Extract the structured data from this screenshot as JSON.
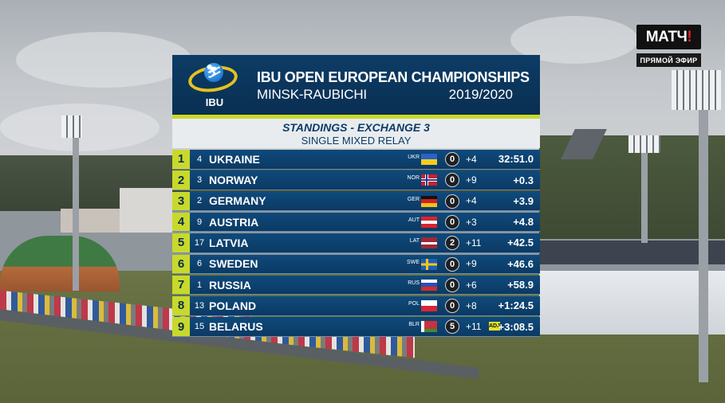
{
  "broadcaster": {
    "logo_main": "МАТЧ",
    "logo_bang": "!",
    "live_label": "ПРЯМОЙ ЭФИР"
  },
  "event": {
    "org_label": "IBU",
    "title": "IBU OPEN EUROPEAN CHAMPIONSHIPS",
    "venue": "MINSK-RAUBICHI",
    "season": "2019/2020",
    "standings_label": "STANDINGS - EXCHANGE 3",
    "race": "SINGLE MIXED RELAY"
  },
  "colors": {
    "accent": "#c8d92b",
    "header": "#0c3c66",
    "row": "#0f4a7c",
    "adj_badge": "#e6e12a"
  },
  "standings": [
    {
      "rank": "1",
      "bib": "4",
      "team": "UKRAINE",
      "code": "UKR",
      "flag": "flag-ukraine",
      "penalties": "0",
      "spares": "+4",
      "time": "32:51.0"
    },
    {
      "rank": "2",
      "bib": "3",
      "team": "NORWAY",
      "code": "NOR",
      "flag": "flag-norway",
      "penalties": "0",
      "spares": "+9",
      "time": "+0.3"
    },
    {
      "rank": "3",
      "bib": "2",
      "team": "GERMANY",
      "code": "GER",
      "flag": "flag-germany",
      "penalties": "0",
      "spares": "+4",
      "time": "+3.9"
    },
    {
      "rank": "4",
      "bib": "9",
      "team": "AUSTRIA",
      "code": "AUT",
      "flag": "flag-austria",
      "penalties": "0",
      "spares": "+3",
      "time": "+4.8"
    },
    {
      "rank": "5",
      "bib": "17",
      "team": "LATVIA",
      "code": "LAT",
      "flag": "flag-latvia",
      "penalties": "2",
      "spares": "+11",
      "time": "+42.5"
    },
    {
      "rank": "6",
      "bib": "6",
      "team": "SWEDEN",
      "code": "SWE",
      "flag": "flag-sweden",
      "penalties": "0",
      "spares": "+9",
      "time": "+46.6"
    },
    {
      "rank": "7",
      "bib": "1",
      "team": "RUSSIA",
      "code": "RUS",
      "flag": "flag-russia",
      "penalties": "0",
      "spares": "+6",
      "time": "+58.9"
    },
    {
      "rank": "8",
      "bib": "13",
      "team": "POLAND",
      "code": "POL",
      "flag": "flag-poland",
      "penalties": "0",
      "spares": "+8",
      "time": "+1:24.5"
    },
    {
      "rank": "9",
      "bib": "15",
      "team": "BELARUS",
      "code": "BLR",
      "flag": "flag-belarus",
      "penalties": "5",
      "spares": "+11",
      "time": "+3:08.5",
      "badge": "ADJ"
    }
  ]
}
